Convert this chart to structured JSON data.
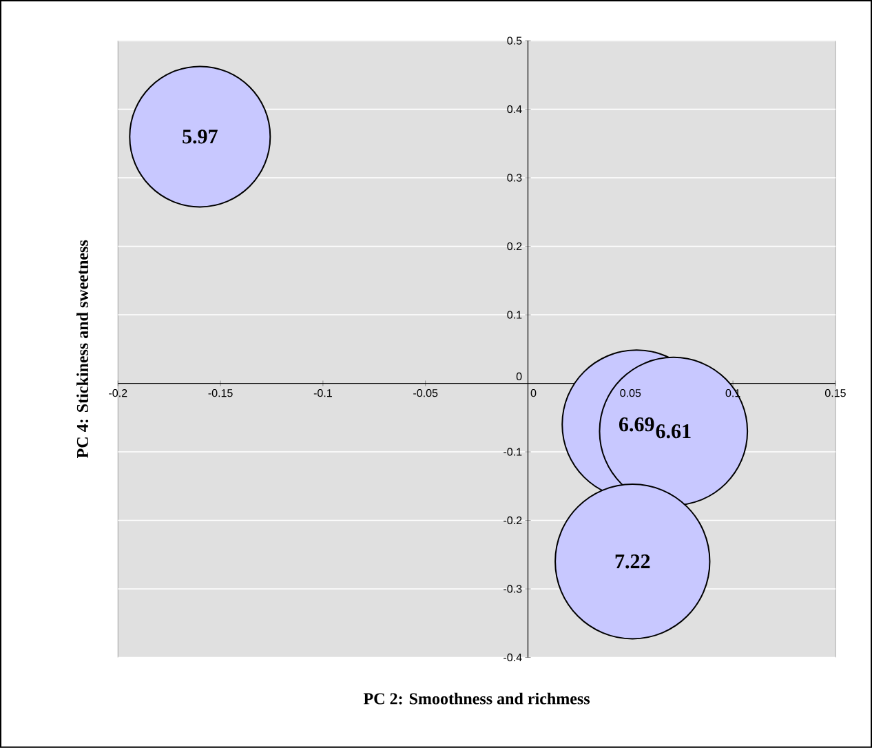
{
  "chart_data": {
    "type": "bubble",
    "xlabel": "PC 2: Smoothness and richmess",
    "ylabel": "PC 4: Stickiness and sweetness",
    "x": [
      -0.16,
      0.053,
      0.071,
      0.051
    ],
    "values": [
      0.36,
      -0.06,
      -0.07,
      -0.26
    ],
    "sizes": [
      5.97,
      6.69,
      6.61,
      7.22
    ],
    "value_labels": [
      "5.97",
      "6.69",
      "6.61",
      "7.22"
    ],
    "color": "#c8c8ff",
    "xlim": [
      -0.2,
      0.15
    ],
    "xticks": [
      -0.2,
      -0.15,
      -0.1,
      -0.05,
      0,
      0.05,
      0.1,
      0.15
    ],
    "ylim": [
      -0.4,
      0.5
    ],
    "yticks": [
      -0.4,
      -0.3,
      -0.2,
      -0.1,
      0,
      0.1,
      0.2,
      0.3,
      0.4,
      0.5
    ],
    "grid": "y"
  }
}
